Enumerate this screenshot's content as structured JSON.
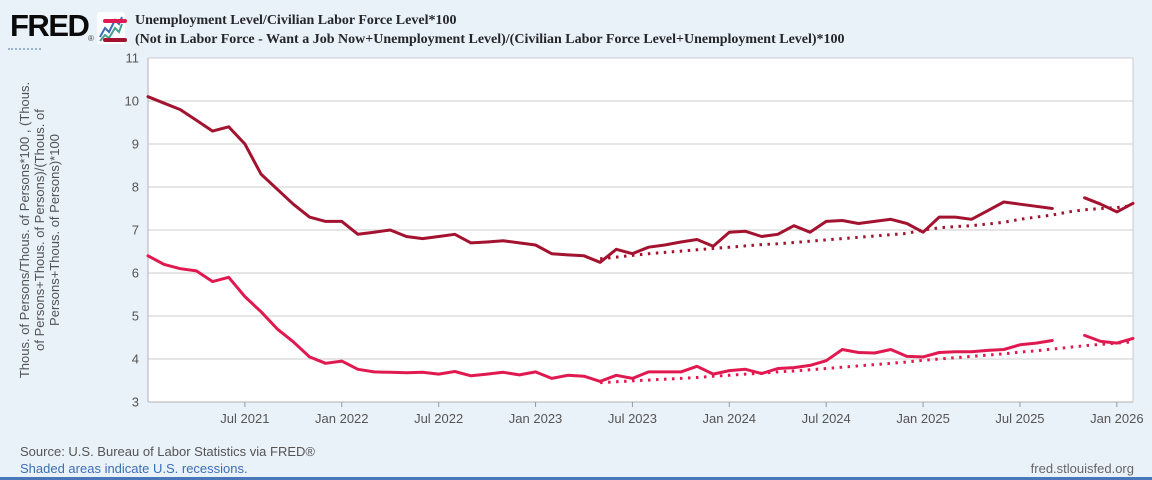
{
  "header": {
    "logo_text": "FRED",
    "logo_reg": "®",
    "legend": [
      {
        "label": "Unemployment Level/Civilian Labor Force Level*100",
        "color": "#e01a50"
      },
      {
        "label": "(Not in Labor Force - Want a Job Now+Unemployment Level)/(Civilian Labor Force Level+Unemployment Level)*100",
        "color": "#a3122f"
      }
    ]
  },
  "footer": {
    "source": "Source: U.S. Bureau of Labor Statistics via FRED®",
    "recession_note": "Shaded areas indicate U.S. recessions.",
    "site": "fred.stlouisfed.org",
    "link_color": "#3d6eb4",
    "bar_color": "#4a76ba"
  },
  "colors": {
    "background": "#e9f1f9",
    "plot_background": "#ffffff",
    "gridline": "#cccccc",
    "axis": "#b3b3b3",
    "tick": "#999999",
    "tick_text": "#555555",
    "series_pink": "#e01a50",
    "series_dark_red": "#a3122f"
  },
  "chart_data": {
    "type": "line",
    "title": "",
    "xlabel": "",
    "ylabel_lines": [
      "Thous. of Persons/Thous. of Persons*100 , (Thous.",
      "of Persons+Thous. of Persons)/(Thous. of",
      "Persons+Thous. of Persons)*100"
    ],
    "ylim": [
      3,
      11
    ],
    "y_ticks": [
      3,
      4,
      5,
      6,
      7,
      8,
      9,
      10,
      11
    ],
    "grid": true,
    "legend_position": "top-left",
    "x_ticks": [
      {
        "label": "Jul 2021",
        "month": 6
      },
      {
        "label": "Jan 2022",
        "month": 12
      },
      {
        "label": "Jul 2022",
        "month": 18
      },
      {
        "label": "Jan 2023",
        "month": 24
      },
      {
        "label": "Jul 2023",
        "month": 30
      },
      {
        "label": "Jan 2024",
        "month": 36
      },
      {
        "label": "Jul 2024",
        "month": 42
      },
      {
        "label": "Jan 2025",
        "month": 48
      },
      {
        "label": "Jul 2025",
        "month": 54
      },
      {
        "label": "Jan 2026",
        "month": 60
      }
    ],
    "x_months": [
      "2021-01",
      "2021-02",
      "2021-03",
      "2021-04",
      "2021-05",
      "2021-06",
      "2021-07",
      "2021-08",
      "2021-09",
      "2021-10",
      "2021-11",
      "2021-12",
      "2022-01",
      "2022-02",
      "2022-03",
      "2022-04",
      "2022-05",
      "2022-06",
      "2022-07",
      "2022-08",
      "2022-09",
      "2022-10",
      "2022-11",
      "2022-12",
      "2023-01",
      "2023-02",
      "2023-03",
      "2023-04",
      "2023-05",
      "2023-06",
      "2023-07",
      "2023-08",
      "2023-09",
      "2023-10",
      "2023-11",
      "2023-12",
      "2024-01",
      "2024-02",
      "2024-03",
      "2024-04",
      "2024-05",
      "2024-06",
      "2024-07",
      "2024-08",
      "2024-09",
      "2024-10",
      "2024-11",
      "2024-12",
      "2025-01",
      "2025-02",
      "2025-03",
      "2025-04",
      "2025-05",
      "2025-06",
      "2025-07",
      "2025-08",
      "2025-09",
      "2025-10",
      "2025-11",
      "2025-12",
      "2026-01",
      "2026-02"
    ],
    "gap_note": "no data plotted for 2025-10 in the solid series",
    "series": [
      {
        "name": "Unemployment Level/Civilian Labor Force Level*100 (dotted variant)",
        "color": "#e01a50",
        "dash": "dotted",
        "values": [
          null,
          null,
          null,
          null,
          null,
          null,
          null,
          null,
          null,
          null,
          null,
          null,
          null,
          null,
          null,
          null,
          null,
          null,
          null,
          null,
          null,
          null,
          null,
          null,
          null,
          null,
          null,
          null,
          3.45,
          3.47,
          3.49,
          3.51,
          3.53,
          3.55,
          3.57,
          3.6,
          3.62,
          3.65,
          3.67,
          3.7,
          3.72,
          3.75,
          3.78,
          3.81,
          3.84,
          3.87,
          3.9,
          3.93,
          3.97,
          4.0,
          4.03,
          4.06,
          4.09,
          4.12,
          4.16,
          4.19,
          4.23,
          4.27,
          4.31,
          4.34,
          4.37,
          4.4
        ]
      },
      {
        "name": "(Not in Labor Force - Want a Job Now+Unemployment Level)/(Civilian Labor Force Level+Unemployment Level)*100 (dotted variant)",
        "color": "#a3122f",
        "dash": "dotted",
        "values": [
          null,
          null,
          null,
          null,
          null,
          null,
          null,
          null,
          null,
          null,
          null,
          null,
          null,
          null,
          null,
          null,
          null,
          null,
          null,
          null,
          null,
          null,
          null,
          null,
          null,
          null,
          null,
          null,
          6.33,
          6.37,
          6.41,
          6.45,
          6.48,
          6.51,
          6.54,
          6.57,
          6.6,
          6.63,
          6.66,
          6.68,
          6.71,
          6.74,
          6.77,
          6.8,
          6.83,
          6.86,
          6.89,
          6.92,
          7.0,
          7.05,
          7.08,
          7.1,
          7.14,
          7.18,
          7.25,
          7.3,
          7.35,
          7.42,
          7.47,
          7.5,
          7.52,
          7.57
        ]
      },
      {
        "name": "Unemployment Level/Civilian Labor Force Level*100",
        "color": "#e01a50",
        "dash": "solid",
        "values": [
          6.4,
          6.2,
          6.1,
          6.05,
          5.8,
          5.9,
          5.45,
          5.1,
          4.7,
          4.4,
          4.05,
          3.9,
          3.95,
          3.76,
          3.7,
          3.69,
          3.68,
          3.69,
          3.65,
          3.71,
          3.61,
          3.65,
          3.69,
          3.63,
          3.7,
          3.55,
          3.62,
          3.6,
          3.48,
          3.62,
          3.55,
          3.7,
          3.7,
          3.7,
          3.83,
          3.65,
          3.73,
          3.76,
          3.66,
          3.78,
          3.8,
          3.85,
          3.96,
          4.22,
          4.15,
          4.14,
          4.22,
          4.06,
          4.05,
          4.15,
          4.17,
          4.17,
          4.2,
          4.22,
          4.33,
          4.37,
          4.43,
          null,
          4.55,
          4.41,
          4.37,
          4.48
        ]
      },
      {
        "name": "(Not in Labor Force - Want a Job Now+Unemployment Level)/(Civilian Labor Force Level+Unemployment Level)*100",
        "color": "#a3122f",
        "dash": "solid",
        "values": [
          10.1,
          9.95,
          9.8,
          9.55,
          9.3,
          9.4,
          9.0,
          8.3,
          7.95,
          7.6,
          7.3,
          7.2,
          7.2,
          6.9,
          6.95,
          7.0,
          6.85,
          6.8,
          6.85,
          6.9,
          6.7,
          6.72,
          6.75,
          6.7,
          6.65,
          6.45,
          6.42,
          6.4,
          6.25,
          6.55,
          6.45,
          6.6,
          6.65,
          6.72,
          6.78,
          6.62,
          6.95,
          6.97,
          6.85,
          6.9,
          7.1,
          6.95,
          7.2,
          7.22,
          7.15,
          7.2,
          7.25,
          7.15,
          6.95,
          7.3,
          7.3,
          7.25,
          7.45,
          7.65,
          7.6,
          7.55,
          7.5,
          null,
          7.75,
          7.6,
          7.42,
          7.62
        ]
      }
    ]
  }
}
